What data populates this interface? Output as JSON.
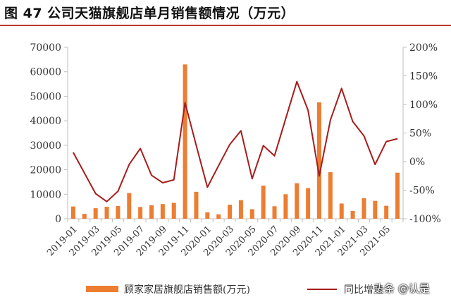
{
  "title": "图 47 公司天猫旗舰店单月销售额情况（万元）",
  "watermark": "头条 @认是",
  "colors": {
    "bar": "#ed7d31",
    "line": "#a61c1c",
    "rule": "#c0392b",
    "axis": "#bfbfbf"
  },
  "chart_data": {
    "type": "bar",
    "categories": [
      "2019-01",
      "2019-02",
      "2019-03",
      "2019-04",
      "2019-05",
      "2019-06",
      "2019-07",
      "2019-08",
      "2019-09",
      "2019-10",
      "2019-11",
      "2019-12",
      "2020-01",
      "2020-02",
      "2020-03",
      "2020-04",
      "2020-05",
      "2020-06",
      "2020-07",
      "2020-08",
      "2020-09",
      "2020-10",
      "2020-11",
      "2020-12",
      "2021-01",
      "2021-02",
      "2021-03",
      "2021-04",
      "2021-05",
      "2021-06"
    ],
    "x_tick_labels": [
      "2019-01",
      "2019-03",
      "2019-05",
      "2019-07",
      "2019-09",
      "2019-11",
      "2020-01",
      "2020-03",
      "2020-05",
      "2020-07",
      "2020-09",
      "2020-11",
      "2021-01",
      "2021-03",
      "2021-05"
    ],
    "left_axis": {
      "ylim": [
        0,
        70000
      ],
      "ticks": [
        "0",
        "10000",
        "20000",
        "30000",
        "40000",
        "50000",
        "60000",
        "70000"
      ]
    },
    "right_axis": {
      "ylim": [
        -100,
        200
      ],
      "ticks": [
        "-100%",
        "-50%",
        "0%",
        "50%",
        "100%",
        "150%",
        "200%"
      ]
    },
    "series": [
      {
        "name": "顾家家居旗舰店销售额(万元)",
        "type": "bar",
        "axis": "left",
        "values": [
          5000,
          2000,
          4300,
          4900,
          5200,
          10500,
          4800,
          5500,
          6000,
          6500,
          63000,
          11000,
          2600,
          1800,
          5700,
          7600,
          3900,
          13500,
          5100,
          10000,
          14500,
          12500,
          47500,
          19000,
          6200,
          3200,
          8400,
          7300,
          5300,
          18800
        ]
      },
      {
        "name": "同比增速",
        "type": "line",
        "axis": "right",
        "values": [
          16,
          -20,
          -56,
          -70,
          -52,
          -5,
          23,
          -24,
          -37,
          -32,
          103,
          28,
          -45,
          -7,
          30,
          54,
          -30,
          28,
          10,
          75,
          140,
          90,
          -25,
          73,
          128,
          70,
          45,
          -5,
          35,
          40
        ]
      }
    ],
    "grid": false,
    "legend": "bottom"
  }
}
